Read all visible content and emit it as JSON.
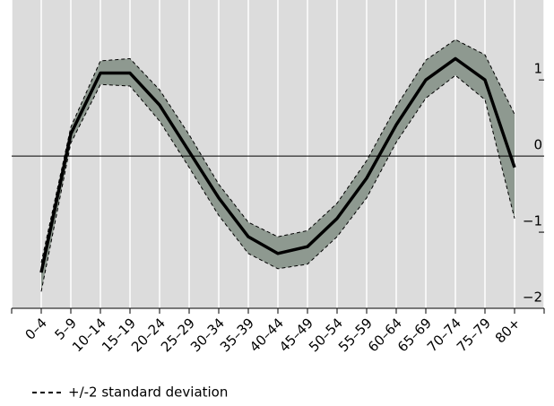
{
  "chart_data": {
    "type": "line",
    "categories": [
      "0–4",
      "5–9",
      "10–14",
      "15–19",
      "20–24",
      "25–29",
      "30–34",
      "35–39",
      "40–44",
      "45–49",
      "50–54",
      "55–59",
      "60–64",
      "65–69",
      "70–74",
      "75–79",
      "80+"
    ],
    "values": [
      -1.53,
      0.29,
      1.09,
      1.09,
      0.67,
      0.06,
      -0.55,
      -1.06,
      -1.28,
      -1.19,
      -0.82,
      -0.29,
      0.41,
      1.0,
      1.28,
      1.0,
      -0.15
    ],
    "color": "#000000",
    "band": {
      "name": "+/-2 standard deviation",
      "color": "#8e9990",
      "upper": [
        -1.4,
        0.38,
        1.25,
        1.28,
        0.87,
        0.28,
        -0.37,
        -0.87,
        -1.06,
        -0.98,
        -0.62,
        -0.06,
        0.65,
        1.26,
        1.53,
        1.33,
        0.55
      ],
      "lower": [
        -1.78,
        0.17,
        0.94,
        0.92,
        0.46,
        -0.15,
        -0.78,
        -1.28,
        -1.48,
        -1.42,
        -1.06,
        -0.55,
        0.18,
        0.76,
        1.06,
        0.74,
        -0.82
      ]
    },
    "ylim": [
      -2,
      2.05
    ],
    "yticks": [
      {
        "value": -2,
        "label": "−2"
      },
      {
        "value": -1,
        "label": "−1"
      },
      0,
      1
    ],
    "grid": true
  }
}
